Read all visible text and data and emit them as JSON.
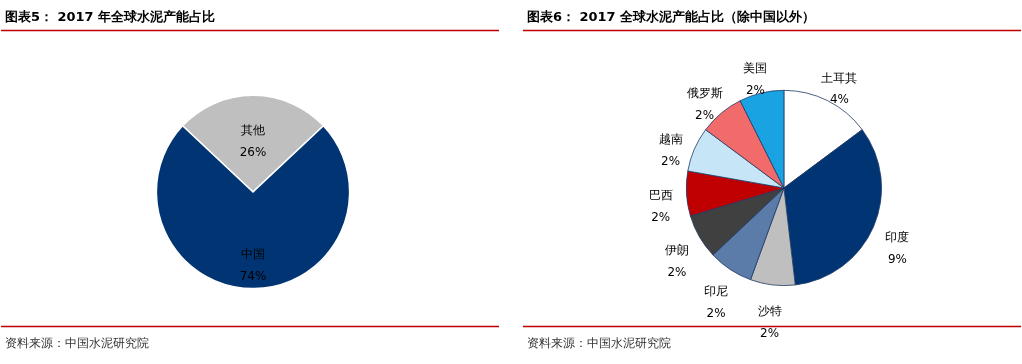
{
  "chart_data": [
    {
      "type": "pie",
      "title": "图表5：  2017 年全球水泥产能占比",
      "categories": [
        "其他",
        "中国"
      ],
      "values": [
        26,
        74
      ],
      "colors": [
        "#bfbfbf",
        "#003473"
      ],
      "value_labels": [
        "26%",
        "74%"
      ],
      "annotations": [
        "资料来源：中国水泥研究院"
      ]
    },
    {
      "type": "pie",
      "title": "图表6：  2017 全球水泥产能占比（除中国以外）",
      "categories": [
        "土耳其",
        "印度",
        "沙特",
        "印尼",
        "伊朗",
        "巴西",
        "越南",
        "俄罗斯",
        "美国"
      ],
      "values": [
        4,
        9,
        2,
        2,
        2,
        2,
        2,
        2,
        2
      ],
      "colors": [
        "#ffffff",
        "#003473",
        "#bfbfbf",
        "#5b7ba8",
        "#404040",
        "#c00000",
        "#c6e6f7",
        "#f26b6b",
        "#1aa3e3"
      ],
      "value_labels": [
        "4%",
        "9%",
        "2%",
        "2%",
        "2%",
        "2%",
        "2%",
        "2%",
        "2%"
      ],
      "annotations": [
        "资料来源：中国水泥研究院"
      ]
    }
  ]
}
